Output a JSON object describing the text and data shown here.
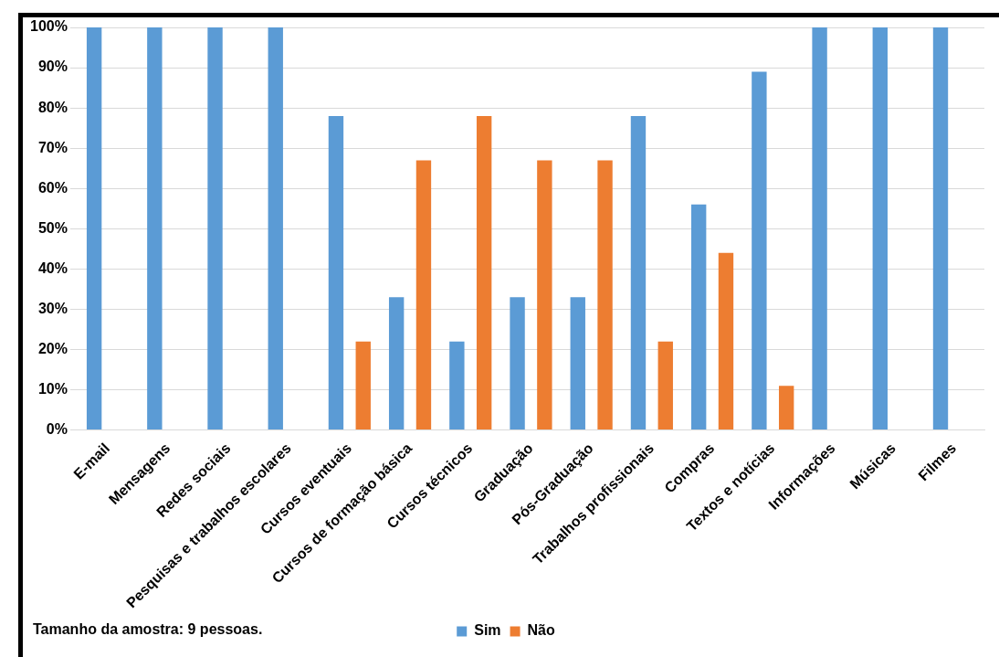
{
  "chart_data": {
    "type": "bar",
    "categories": [
      "E-mail",
      "Mensagens",
      "Redes sociais",
      "Pesquisas e trabalhos escolares",
      "Cursos eventuais",
      "Cursos de formação básica",
      "Cursos técnicos",
      "Graduação",
      "Pós-Graduação",
      "Trabalhos profissionais",
      "Compras",
      "Textos e notícias",
      "Informações",
      "Músicas",
      "Filmes"
    ],
    "series": [
      {
        "name": "Sim",
        "color": "#5b9bd5",
        "values": [
          100,
          100,
          100,
          100,
          78,
          33,
          22,
          33,
          33,
          78,
          56,
          89,
          100,
          100,
          100
        ]
      },
      {
        "name": "Não",
        "color": "#ed7d31",
        "values": [
          0,
          0,
          0,
          0,
          22,
          67,
          78,
          67,
          67,
          22,
          44,
          11,
          0,
          0,
          0
        ]
      }
    ],
    "ylim": [
      0,
      100
    ],
    "yticks": [
      {
        "value": 0,
        "label": "0%"
      },
      {
        "value": 10,
        "label": "10%"
      },
      {
        "value": 20,
        "label": "20%"
      },
      {
        "value": 30,
        "label": "30%"
      },
      {
        "value": 40,
        "label": "40%"
      },
      {
        "value": 50,
        "label": "50%"
      },
      {
        "value": 60,
        "label": "60%"
      },
      {
        "value": 70,
        "label": "70%"
      },
      {
        "value": 80,
        "label": "80%"
      },
      {
        "value": 90,
        "label": "90%"
      },
      {
        "value": 100,
        "label": "100%"
      }
    ],
    "grid": "y",
    "legend": "bottom",
    "annotations": [
      "Tamanho da amostra: 9 pessoas."
    ]
  }
}
